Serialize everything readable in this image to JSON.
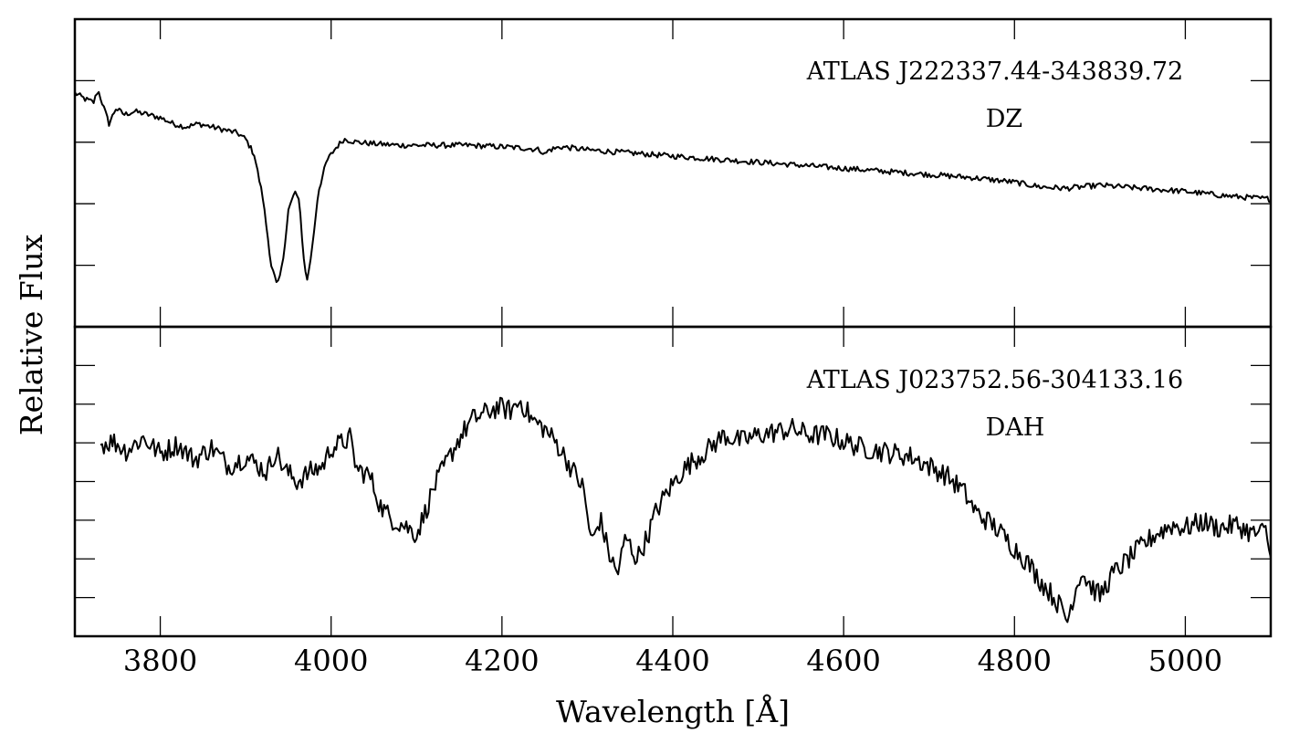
{
  "chart_data": {
    "type": "line",
    "xlabel": "Wavelength [Å]",
    "ylabel": "Relative Flux",
    "xlim": [
      3700,
      5100
    ],
    "x_ticks": [
      "3800",
      "4000",
      "4200",
      "4400",
      "4600",
      "4800",
      "5000"
    ],
    "y_tick_labels_shown": false,
    "grid": false,
    "panels": [
      {
        "name": "ATLAS J222337.44-343839.72",
        "class": "DZ",
        "ylim": [
          0,
          1
        ],
        "points": [
          [
            3700,
            0.76
          ],
          [
            3712,
            0.74
          ],
          [
            3722,
            0.73
          ],
          [
            3727,
            0.77
          ],
          [
            3733,
            0.72
          ],
          [
            3740,
            0.66
          ],
          [
            3748,
            0.71
          ],
          [
            3758,
            0.69
          ],
          [
            3770,
            0.7
          ],
          [
            3785,
            0.69
          ],
          [
            3800,
            0.68
          ],
          [
            3815,
            0.66
          ],
          [
            3830,
            0.65
          ],
          [
            3845,
            0.66
          ],
          [
            3860,
            0.65
          ],
          [
            3875,
            0.64
          ],
          [
            3890,
            0.63
          ],
          [
            3900,
            0.61
          ],
          [
            3910,
            0.56
          ],
          [
            3920,
            0.42
          ],
          [
            3930,
            0.2
          ],
          [
            3937,
            0.13
          ],
          [
            3943,
            0.2
          ],
          [
            3950,
            0.38
          ],
          [
            3958,
            0.44
          ],
          [
            3963,
            0.4
          ],
          [
            3968,
            0.22
          ],
          [
            3972,
            0.15
          ],
          [
            3978,
            0.26
          ],
          [
            3985,
            0.44
          ],
          [
            3995,
            0.54
          ],
          [
            4005,
            0.58
          ],
          [
            4015,
            0.61
          ],
          [
            4030,
            0.6
          ],
          [
            4050,
            0.595
          ],
          [
            4080,
            0.59
          ],
          [
            4120,
            0.59
          ],
          [
            4160,
            0.59
          ],
          [
            4200,
            0.585
          ],
          [
            4230,
            0.58
          ],
          [
            4245,
            0.575
          ],
          [
            4250,
            0.56
          ],
          [
            4255,
            0.575
          ],
          [
            4270,
            0.585
          ],
          [
            4300,
            0.575
          ],
          [
            4350,
            0.565
          ],
          [
            4400,
            0.555
          ],
          [
            4450,
            0.545
          ],
          [
            4500,
            0.535
          ],
          [
            4550,
            0.525
          ],
          [
            4600,
            0.515
          ],
          [
            4650,
            0.505
          ],
          [
            4700,
            0.495
          ],
          [
            4750,
            0.485
          ],
          [
            4800,
            0.47
          ],
          [
            4830,
            0.455
          ],
          [
            4860,
            0.45
          ],
          [
            4900,
            0.46
          ],
          [
            4950,
            0.45
          ],
          [
            5000,
            0.44
          ],
          [
            5050,
            0.425
          ],
          [
            5100,
            0.415
          ]
        ]
      },
      {
        "name": "ATLAS J023752.56-304133.16",
        "class": "DAH",
        "ylim": [
          0,
          1
        ],
        "points": [
          [
            3730,
            0.62
          ],
          [
            3745,
            0.63
          ],
          [
            3760,
            0.6
          ],
          [
            3780,
            0.64
          ],
          [
            3800,
            0.59
          ],
          [
            3820,
            0.62
          ],
          [
            3840,
            0.57
          ],
          [
            3860,
            0.61
          ],
          [
            3880,
            0.55
          ],
          [
            3900,
            0.58
          ],
          [
            3915,
            0.55
          ],
          [
            3925,
            0.53
          ],
          [
            3935,
            0.6
          ],
          [
            3945,
            0.54
          ],
          [
            3960,
            0.5
          ],
          [
            3975,
            0.53
          ],
          [
            3990,
            0.55
          ],
          [
            4000,
            0.61
          ],
          [
            4010,
            0.62
          ],
          [
            4022,
            0.64
          ],
          [
            4030,
            0.54
          ],
          [
            4045,
            0.52
          ],
          [
            4058,
            0.42
          ],
          [
            4070,
            0.38
          ],
          [
            4085,
            0.36
          ],
          [
            4100,
            0.33
          ],
          [
            4110,
            0.4
          ],
          [
            4120,
            0.48
          ],
          [
            4135,
            0.56
          ],
          [
            4150,
            0.64
          ],
          [
            4165,
            0.7
          ],
          [
            4180,
            0.72
          ],
          [
            4195,
            0.74
          ],
          [
            4210,
            0.73
          ],
          [
            4222,
            0.76
          ],
          [
            4235,
            0.7
          ],
          [
            4250,
            0.67
          ],
          [
            4265,
            0.62
          ],
          [
            4280,
            0.55
          ],
          [
            4295,
            0.48
          ],
          [
            4305,
            0.3
          ],
          [
            4315,
            0.38
          ],
          [
            4325,
            0.27
          ],
          [
            4335,
            0.2
          ],
          [
            4345,
            0.32
          ],
          [
            4358,
            0.25
          ],
          [
            4370,
            0.32
          ],
          [
            4380,
            0.4
          ],
          [
            4392,
            0.46
          ],
          [
            4410,
            0.53
          ],
          [
            4425,
            0.57
          ],
          [
            4440,
            0.6
          ],
          [
            4460,
            0.65
          ],
          [
            4480,
            0.63
          ],
          [
            4500,
            0.65
          ],
          [
            4520,
            0.66
          ],
          [
            4540,
            0.67
          ],
          [
            4560,
            0.65
          ],
          [
            4580,
            0.65
          ],
          [
            4600,
            0.63
          ],
          [
            4620,
            0.61
          ],
          [
            4640,
            0.6
          ],
          [
            4660,
            0.59
          ],
          [
            4680,
            0.58
          ],
          [
            4700,
            0.55
          ],
          [
            4720,
            0.52
          ],
          [
            4740,
            0.47
          ],
          [
            4755,
            0.4
          ],
          [
            4775,
            0.36
          ],
          [
            4795,
            0.3
          ],
          [
            4815,
            0.24
          ],
          [
            4830,
            0.18
          ],
          [
            4845,
            0.13
          ],
          [
            4855,
            0.09
          ],
          [
            4862,
            0.05
          ],
          [
            4868,
            0.12
          ],
          [
            4878,
            0.21
          ],
          [
            4890,
            0.16
          ],
          [
            4900,
            0.13
          ],
          [
            4915,
            0.2
          ],
          [
            4930,
            0.24
          ],
          [
            4945,
            0.28
          ],
          [
            4965,
            0.33
          ],
          [
            4985,
            0.36
          ],
          [
            5000,
            0.35
          ],
          [
            5020,
            0.37
          ],
          [
            5040,
            0.35
          ],
          [
            5060,
            0.36
          ],
          [
            5080,
            0.33
          ],
          [
            5095,
            0.34
          ],
          [
            5100,
            0.24
          ]
        ]
      }
    ]
  }
}
